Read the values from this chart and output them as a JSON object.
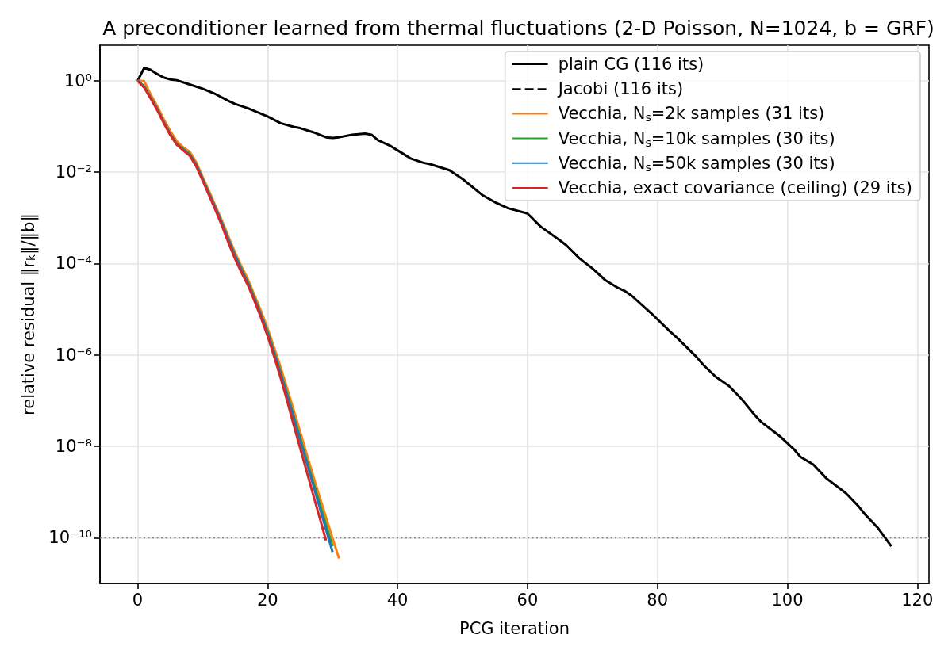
{
  "chart_data": {
    "type": "line",
    "title": "A preconditioner learned from thermal fluctuations (2-D Poisson, N=1024, b = GRF)",
    "xlabel": "PCG iteration",
    "ylabel": "relative residual ‖r$_{k}$‖/‖b‖",
    "xlim": [
      -5.8,
      121.8
    ],
    "xticks": [
      0,
      20,
      40,
      60,
      80,
      100,
      120
    ],
    "ylim": [
      1e-11,
      6
    ],
    "yticks": [
      {
        "value": 1,
        "label": "10⁰"
      },
      {
        "value": 0.01,
        "label": "10⁻²"
      },
      {
        "value": 0.0001,
        "label": "10⁻⁴"
      },
      {
        "value": 1e-06,
        "label": "10⁻⁶"
      },
      {
        "value": 1e-08,
        "label": "10⁻⁸"
      },
      {
        "value": 1e-10,
        "label": "10⁻¹⁰"
      }
    ],
    "log": "y",
    "grid": true,
    "legend": "top right",
    "ref_lines": [
      {
        "axis": "y",
        "value": 1e-10,
        "color": "#808080",
        "line_style": "dotted"
      }
    ],
    "series": [
      {
        "name": "plain CG (116 its)",
        "color": "#000000",
        "x": [
          0,
          1,
          2,
          3,
          4,
          5,
          6,
          8,
          10,
          12,
          14,
          15,
          17,
          20,
          22,
          24,
          25,
          27,
          29,
          30,
          31,
          33,
          35,
          36,
          37,
          39,
          42,
          44,
          45,
          48,
          50,
          53,
          55,
          57,
          60,
          62,
          65,
          66,
          68,
          70,
          72,
          74,
          75,
          76,
          79,
          82,
          83,
          86,
          87,
          89,
          91,
          93,
          95,
          96,
          99,
          101,
          102,
          104,
          106,
          109,
          111,
          112,
          114,
          116
        ],
        "values": [
          1,
          1.9,
          1.74,
          1.4,
          1.18,
          1.07,
          1.03,
          0.83,
          0.67,
          0.51,
          0.36,
          0.31,
          0.25,
          0.166,
          0.118,
          0.098,
          0.092,
          0.075,
          0.058,
          0.056,
          0.058,
          0.066,
          0.07,
          0.066,
          0.05,
          0.037,
          0.02,
          0.016,
          0.015,
          0.011,
          0.0071,
          0.0032,
          0.0022,
          0.00163,
          0.00125,
          0.00065,
          0.00032,
          0.00025,
          0.00013,
          7.8e-05,
          4.3e-05,
          2.9e-05,
          2.5e-05,
          2e-05,
          8.3e-06,
          3.2e-06,
          2.4e-06,
          9.1e-07,
          6.2e-07,
          3.3e-07,
          2.1e-07,
          1.07e-07,
          4.8e-08,
          3.4e-08,
          1.6e-08,
          8.7e-09,
          5.9e-09,
          4e-09,
          2e-09,
          9.5e-10,
          4.8e-10,
          3.2e-10,
          1.6e-10,
          6.5e-11
        ]
      },
      {
        "name": "Jacobi (116 its)",
        "color": "#000000",
        "line_style": "dashed"
      },
      {
        "name": "Vecchia, N$_{s}$=2k samples (31 its)",
        "color": "#ff7f0e",
        "x": [
          0,
          1,
          2,
          3,
          4,
          5,
          6,
          7,
          8,
          9,
          10,
          11,
          12,
          13,
          14,
          15,
          16,
          17,
          18,
          19,
          20,
          21,
          22,
          23,
          24,
          25,
          26,
          27,
          28,
          29,
          30,
          31
        ],
        "values": [
          1,
          0.98,
          0.5,
          0.28,
          0.145,
          0.08,
          0.048,
          0.035,
          0.028,
          0.0166,
          0.0079,
          0.0038,
          0.0018,
          0.00085,
          0.00038,
          0.000174,
          8.5e-05,
          4.4e-05,
          2e-05,
          9.1e-06,
          3.8e-06,
          1.45e-06,
          5.4e-07,
          1.86e-07,
          6.3e-08,
          2.1e-08,
          6.9e-09,
          2.3e-09,
          7.9e-10,
          2.75e-10,
          9.8e-11,
          3.5e-11
        ]
      },
      {
        "name": "Vecchia, N$_{s}$=10k samples (30 its)",
        "color": "#2ca02c",
        "x": [
          0,
          1,
          2,
          3,
          4,
          5,
          6,
          7,
          8,
          9,
          10,
          11,
          12,
          13,
          14,
          15,
          16,
          17,
          18,
          19,
          20,
          21,
          22,
          23,
          24,
          25,
          26,
          27,
          28,
          29,
          30
        ],
        "values": [
          1,
          0.76,
          0.43,
          0.245,
          0.126,
          0.069,
          0.042,
          0.032,
          0.025,
          0.0148,
          0.0071,
          0.0034,
          0.00162,
          0.00076,
          0.00033,
          0.000151,
          7.4e-05,
          3.8e-05,
          1.74e-05,
          7.6e-06,
          3.2e-06,
          1.17e-06,
          4.2e-07,
          1.41e-07,
          4.7e-08,
          1.51e-08,
          5e-09,
          1.66e-09,
          5.6e-10,
          1.9e-10,
          6.5e-11
        ]
      },
      {
        "name": "Vecchia, N$_{s}$=50k samples (30 its)",
        "color": "#1f77b4",
        "x": [
          0,
          1,
          2,
          3,
          4,
          5,
          6,
          7,
          8,
          9,
          10,
          11,
          12,
          13,
          14,
          15,
          16,
          17,
          18,
          19,
          20,
          21,
          22,
          23,
          24,
          25,
          26,
          27,
          28,
          29,
          30
        ],
        "values": [
          1,
          0.74,
          0.42,
          0.24,
          0.124,
          0.068,
          0.041,
          0.031,
          0.024,
          0.0145,
          0.007,
          0.0033,
          0.00158,
          0.00074,
          0.00032,
          0.000146,
          7.1e-05,
          3.6e-05,
          1.66e-05,
          7.2e-06,
          3e-06,
          1.12e-06,
          3.9e-07,
          1.29e-07,
          4.3e-08,
          1.38e-08,
          4.5e-09,
          1.45e-09,
          4.7e-10,
          1.51e-10,
          4.9e-11
        ]
      },
      {
        "name": "Vecchia, exact covariance (ceiling) (29 its)",
        "color": "#d62728",
        "x": [
          0,
          1,
          2,
          3,
          4,
          5,
          6,
          7,
          8,
          9,
          10,
          11,
          12,
          13,
          14,
          15,
          16,
          17,
          18,
          19,
          20,
          21,
          22,
          23,
          24,
          25,
          26,
          27,
          28,
          29
        ],
        "values": [
          1,
          0.71,
          0.41,
          0.23,
          0.12,
          0.066,
          0.04,
          0.03,
          0.023,
          0.0135,
          0.0066,
          0.0031,
          0.00145,
          0.00066,
          0.00028,
          0.000126,
          6.3e-05,
          3.3e-05,
          1.5e-05,
          6.5e-06,
          2.6e-06,
          9.3e-07,
          3.2e-07,
          1e-07,
          3e-08,
          9.3e-09,
          2.9e-09,
          8.9e-10,
          2.8e-10,
          8.7e-11
        ]
      }
    ]
  }
}
